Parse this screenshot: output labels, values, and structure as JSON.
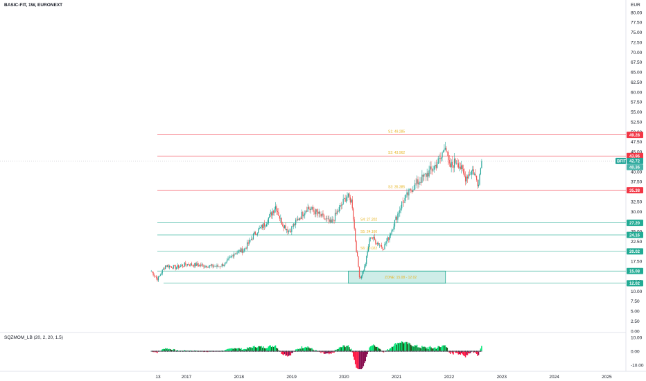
{
  "header": {
    "title": "BASIC-FIT, 1W, EURONEXT"
  },
  "oscillator": {
    "title": "SQZMOM_LB (20, 2, 20, 1.5)",
    "ticks": [
      "10.00",
      "0.00",
      "-10.00"
    ]
  },
  "colors": {
    "bull": "#26a69a",
    "bear": "#ef5350",
    "resistance": "#f23645",
    "support": "#22ab94",
    "level_text": "#e6b422",
    "ticker_tag": "#26a69a",
    "sqz_up_strong": "#00e676",
    "sqz_up_weak": "#1b5e20",
    "sqz_dn_strong": "#ff1744",
    "sqz_dn_weak": "#880e4f"
  },
  "chart_data": {
    "type": "candlestick",
    "currency_label": "EUR",
    "y_ticks": [
      "80.00",
      "77.50",
      "75.00",
      "72.50",
      "70.00",
      "67.50",
      "65.00",
      "62.50",
      "60.00",
      "57.50",
      "55.00",
      "52.50",
      "50.00",
      "47.50",
      "45.00",
      "42.50",
      "40.00",
      "37.50",
      "35.00",
      "32.50",
      "30.00",
      "27.50",
      "25.00",
      "22.50",
      "20.00",
      "17.50",
      "15.00",
      "12.50",
      "10.00",
      "7.50",
      "5.00",
      "2.50",
      "0.00"
    ],
    "x_ticks": [
      "13",
      "2017",
      "2018",
      "2019",
      "2020",
      "2021",
      "2022",
      "2023",
      "2024",
      "2025"
    ],
    "ylim": [
      0,
      80
    ],
    "ticker": "BFIT",
    "last_price": "42.72",
    "prev_close": "40.36",
    "price_tags": [
      {
        "label": "49.28",
        "value": 49.28,
        "type": "resistance"
      },
      {
        "label": "43.96",
        "value": 43.96,
        "type": "resistance"
      },
      {
        "label": "35.38",
        "value": 35.38,
        "type": "resistance"
      },
      {
        "label": "27.20",
        "value": 27.2,
        "type": "support"
      },
      {
        "label": "24.16",
        "value": 24.16,
        "type": "support"
      },
      {
        "label": "20.02",
        "value": 20.02,
        "type": "support"
      },
      {
        "label": "15.08",
        "value": 15.08,
        "type": "support"
      },
      {
        "label": "12.02",
        "value": 12.02,
        "type": "support"
      }
    ],
    "level_labels": [
      {
        "label": "S1: 49.285",
        "value": 49.285
      },
      {
        "label": "S2: 43.962",
        "value": 43.962
      },
      {
        "label": "S3: 35.385",
        "value": 35.385
      },
      {
        "label": "S4: 27.202",
        "value": 27.202
      },
      {
        "label": "S5: 24.160",
        "value": 24.16
      },
      {
        "label": "S6: 20.022",
        "value": 20.022
      },
      {
        "label": "ZONE: 15.08 - 12.02",
        "value": 13.55
      }
    ],
    "anchors": [
      [
        2016.33,
        15.0
      ],
      [
        2016.45,
        13.0
      ],
      [
        2016.6,
        16.5
      ],
      [
        2016.8,
        16.0
      ],
      [
        2017.0,
        16.8
      ],
      [
        2017.3,
        16.5
      ],
      [
        2017.6,
        16.2
      ],
      [
        2017.75,
        17.0
      ],
      [
        2017.9,
        19.5
      ],
      [
        2018.1,
        20.5
      ],
      [
        2018.3,
        24.5
      ],
      [
        2018.5,
        27.0
      ],
      [
        2018.7,
        31.5
      ],
      [
        2018.8,
        27.5
      ],
      [
        2018.95,
        25.0
      ],
      [
        2019.15,
        28.5
      ],
      [
        2019.3,
        31.0
      ],
      [
        2019.45,
        30.0
      ],
      [
        2019.6,
        28.5
      ],
      [
        2019.75,
        27.0
      ],
      [
        2019.9,
        30.5
      ],
      [
        2020.05,
        34.0
      ],
      [
        2020.15,
        32.5
      ],
      [
        2020.22,
        22.0
      ],
      [
        2020.3,
        13.0
      ],
      [
        2020.4,
        16.5
      ],
      [
        2020.5,
        24.0
      ],
      [
        2020.6,
        22.5
      ],
      [
        2020.75,
        21.0
      ],
      [
        2020.85,
        23.5
      ],
      [
        2020.95,
        27.0
      ],
      [
        2021.1,
        32.0
      ],
      [
        2021.3,
        36.0
      ],
      [
        2021.5,
        38.5
      ],
      [
        2021.7,
        41.0
      ],
      [
        2021.85,
        43.5
      ],
      [
        2021.92,
        47.5
      ],
      [
        2022.0,
        41.0
      ],
      [
        2022.15,
        43.0
      ],
      [
        2022.3,
        38.5
      ],
      [
        2022.45,
        40.5
      ],
      [
        2022.55,
        37.0
      ],
      [
        2022.62,
        42.72
      ]
    ]
  }
}
